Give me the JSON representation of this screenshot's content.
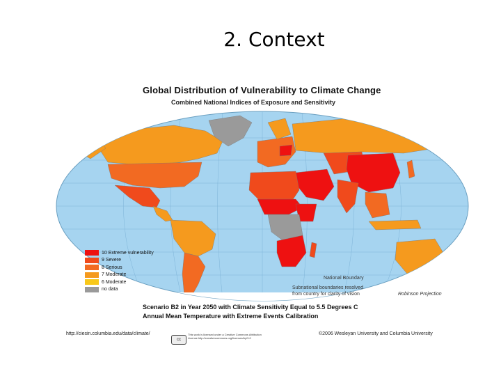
{
  "slide": {
    "title": "2. Context"
  },
  "map": {
    "title": "Global Distribution of Vulnerability to Climate Change",
    "subtitle": "Combined National Indices of Exposure and Sensitivity",
    "projection": "Robinson Projection",
    "ocean_color": "#a6d4f0",
    "boundary_label": "National Boundary",
    "subnational_note_line1": "Subnational boundaries resolved",
    "subnational_note_line2": "from country for clarity of vision",
    "legend": [
      {
        "label": "10 Extreme vulnerability",
        "color": "#ee1111"
      },
      {
        "label": "9 Severe",
        "color": "#f04a1c"
      },
      {
        "label": "8 Serious",
        "color": "#f26a22"
      },
      {
        "label": "7 Moderate",
        "color": "#f59a1e"
      },
      {
        "label": "6 Moderate",
        "color": "#f8c81a"
      },
      {
        "label": "no data",
        "color": "#9a9a9a"
      }
    ],
    "scenario": "Scenario B2 in Year 2050 with Climate Sensitivity Equal to 5.5 Degrees C",
    "calibration": "Annual Mean Temperature with Extreme Events Calibration",
    "source_url": "http://ciesin.columbia.edu/data/climate/",
    "license_text": "This work is licensed under a Creative Commons Attribution License http://creativecommons.org/licenses/by/3.0",
    "license_badge": "cc",
    "copyright": "©2006 Wesleyan University and Columbia University"
  }
}
